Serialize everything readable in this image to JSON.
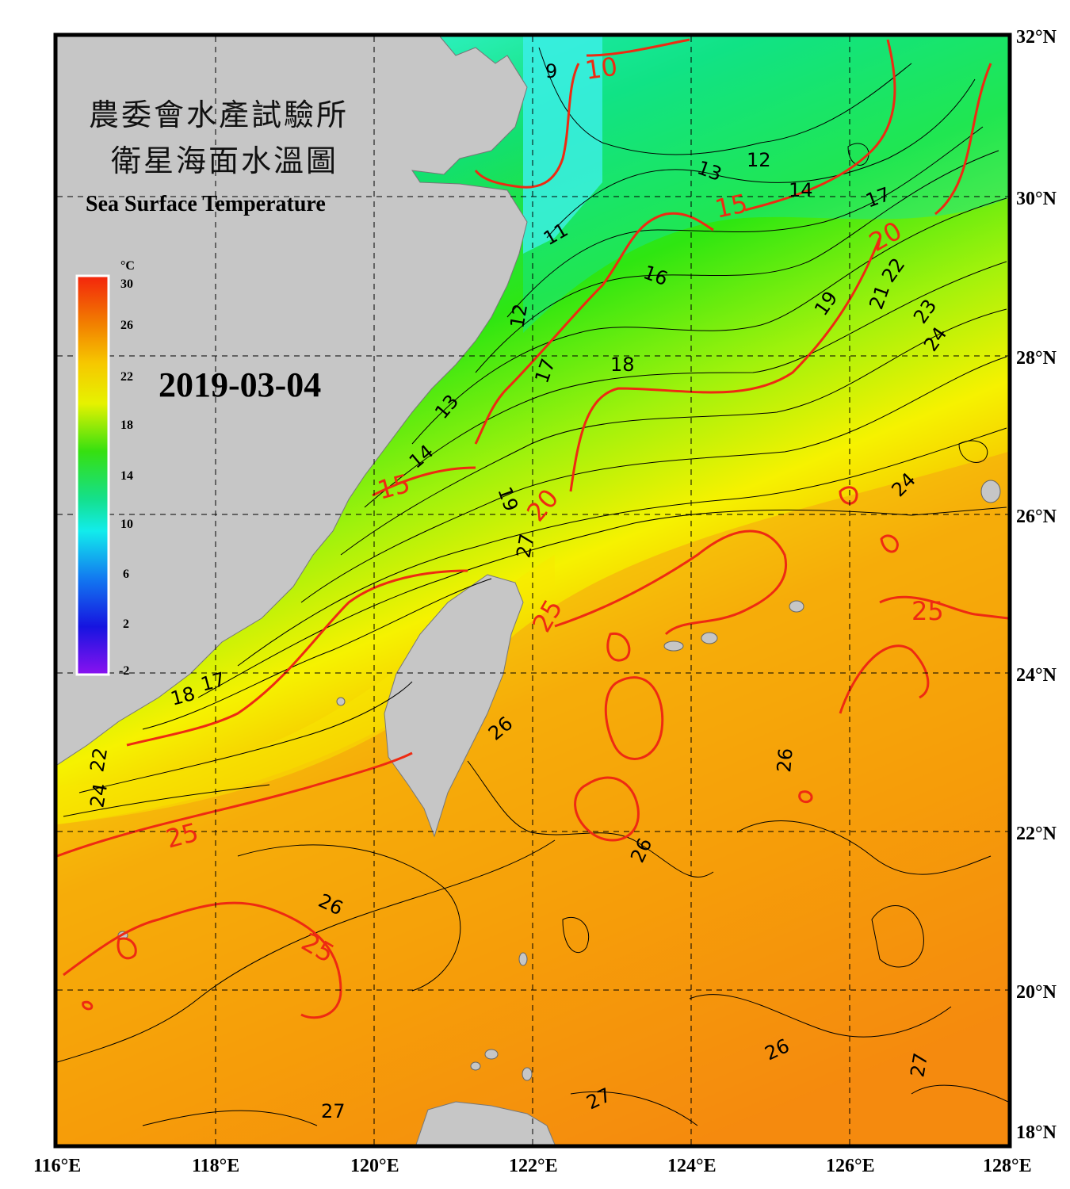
{
  "title": {
    "line1": "農委會水產試驗所",
    "line2": "衛星海面水溫圖",
    "english": "Sea Surface Temperature"
  },
  "date": "2019-03-04",
  "colorbar": {
    "unit": "°C",
    "ticks": [
      "30",
      "26",
      "22",
      "18",
      "14",
      "10",
      "6",
      "2",
      "-2"
    ]
  },
  "axes": {
    "x_ticks": [
      "116°E",
      "118°E",
      "120°E",
      "122°E",
      "124°E",
      "126°E",
      "128°E"
    ],
    "y_ticks": [
      "32°N",
      "30°N",
      "28°N",
      "26°N",
      "24°N",
      "22°N",
      "20°N",
      "18°N"
    ]
  },
  "colors": {
    "land": "#c6c6c6",
    "contour_major": "#ee2a12",
    "contour_minor": "#000000",
    "frame": "#000000"
  },
  "contour_labels": {
    "black": [
      "9",
      "13",
      "12",
      "14",
      "17",
      "11",
      "16",
      "22",
      "21",
      "19",
      "23",
      "24",
      "12",
      "18",
      "17",
      "13",
      "14",
      "19",
      "24",
      "27",
      "22",
      "24",
      "26",
      "26",
      "26",
      "26",
      "26",
      "27",
      "27",
      "27",
      "18",
      "17"
    ],
    "red": [
      "10",
      "15",
      "20",
      "15",
      "20",
      "25",
      "25",
      "25",
      "25"
    ]
  }
}
